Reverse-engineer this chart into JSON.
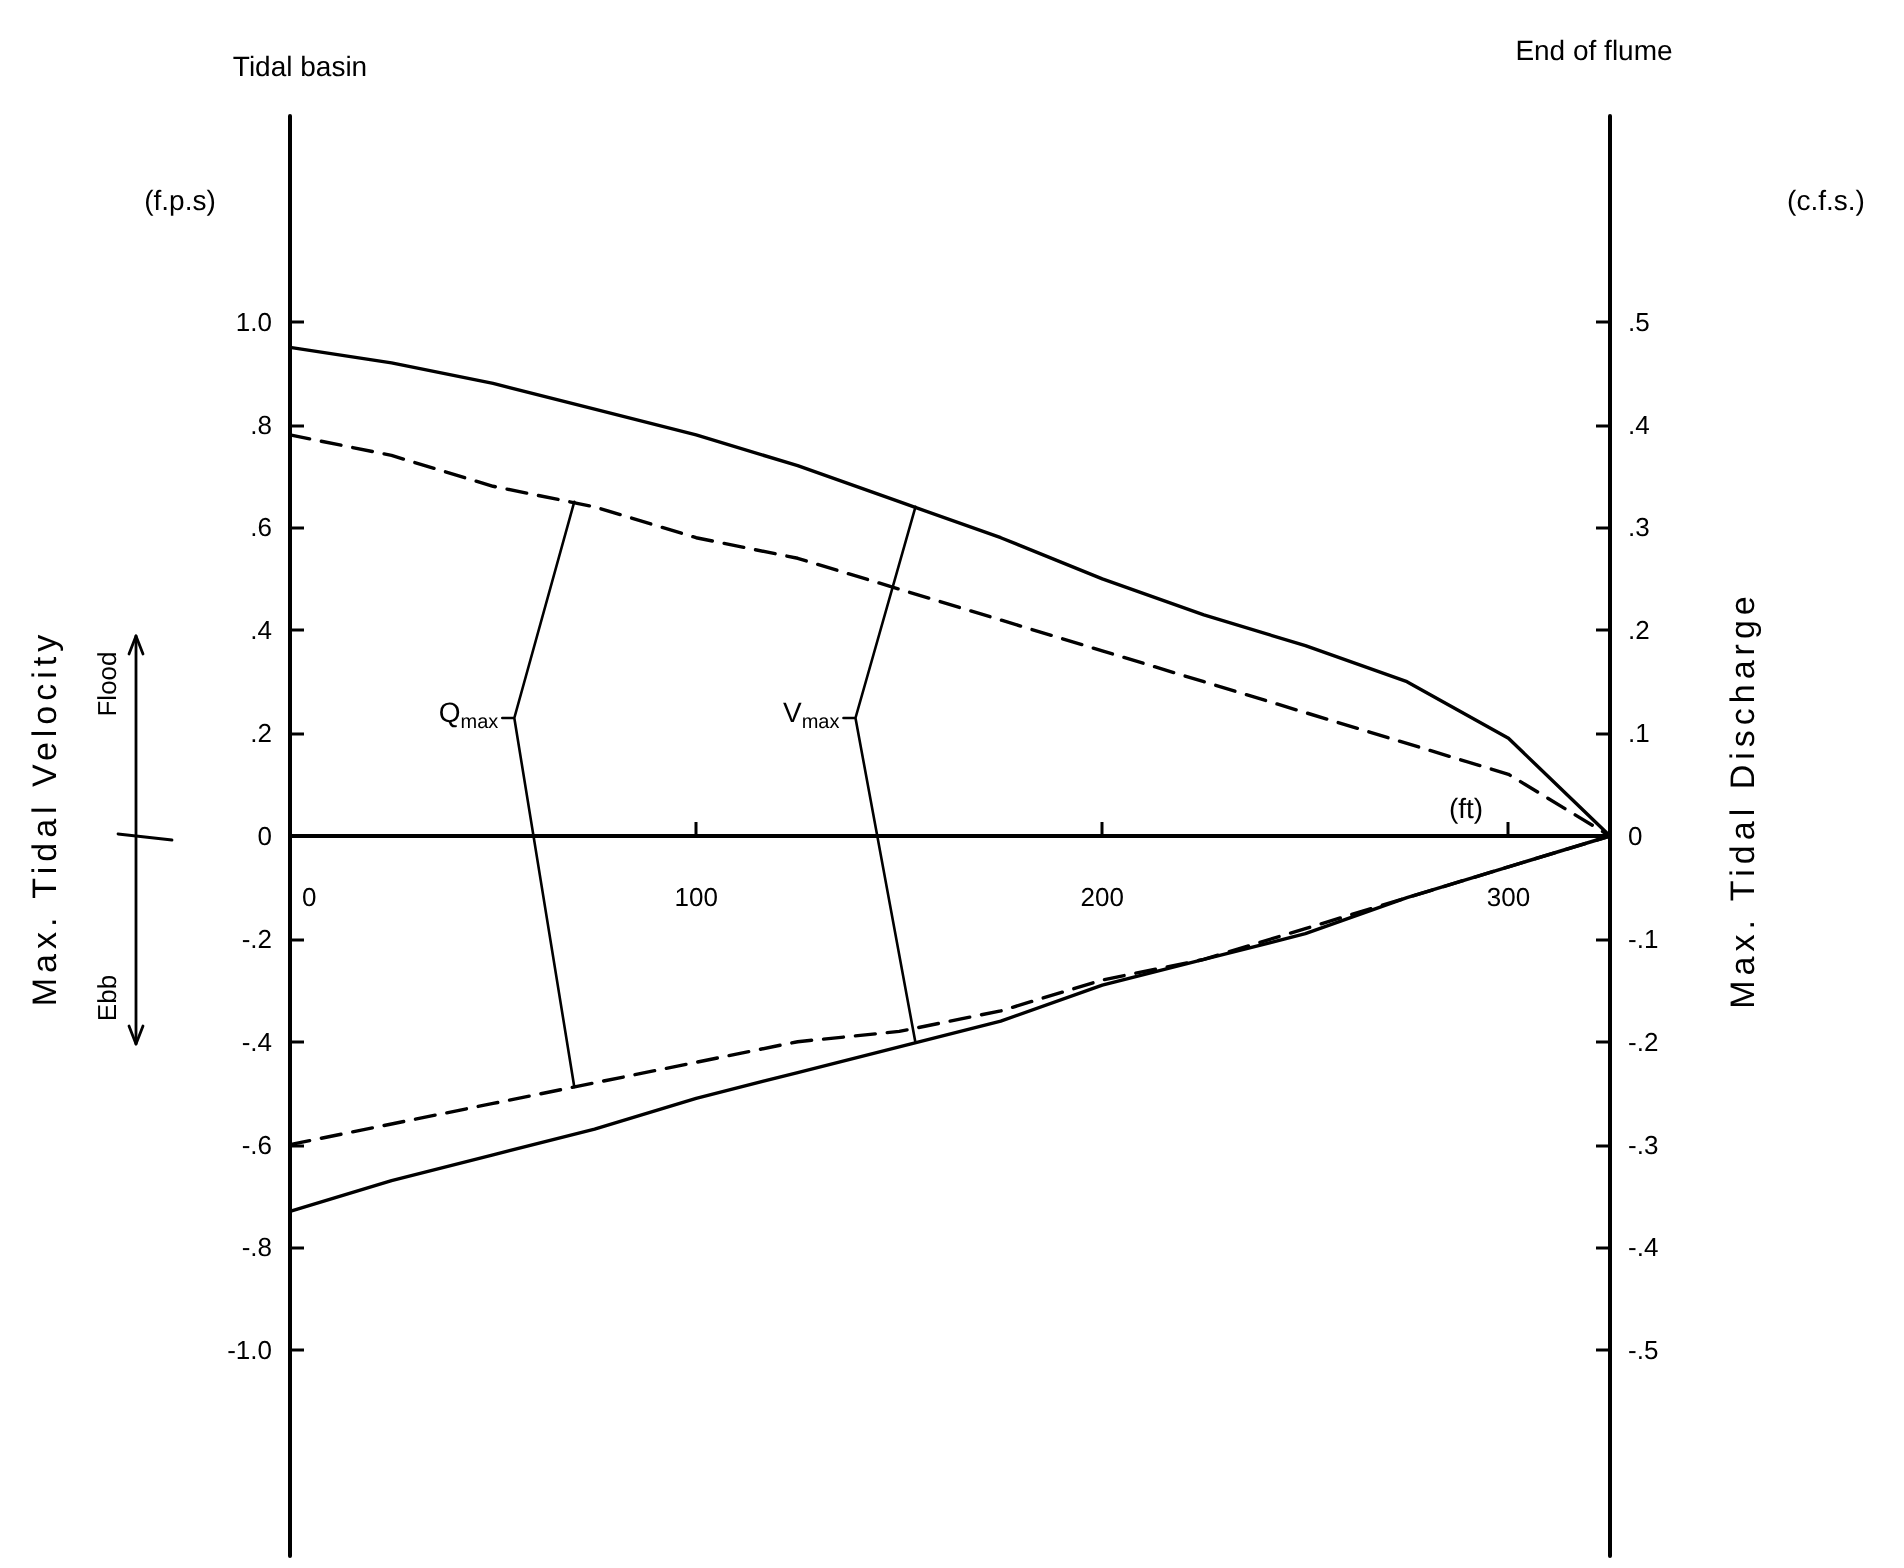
{
  "chart_data": {
    "type": "line",
    "xlabel": "(ft)",
    "ylabel": "Max. Tidal Velocity",
    "y2label": "Max. Tidal Discharge",
    "annotations": [
      "Tidal basin",
      "End of flume",
      "(f.p.s)",
      "(c.f.s.)",
      "Flood",
      "Ebb",
      {
        "text": "Q$_{max}$",
        "x": 70,
        "y": 0.65
      },
      {
        "text": "V$_{max}$",
        "x": 154,
        "y": 0.64
      }
    ],
    "x": [
      0,
      25,
      50,
      75,
      100,
      125,
      150,
      175,
      200,
      225,
      250,
      275,
      300,
      325
    ],
    "series": [
      {
        "color": "#000000",
        "line_style": "solid",
        "values": [
          0.95,
          0.92,
          0.88,
          0.83,
          0.78,
          0.72,
          0.65,
          0.58,
          0.5,
          0.43,
          0.37,
          0.3,
          0.19,
          0
        ]
      },
      {
        "color": "#000000",
        "line_style": "solid",
        "values": [
          -0.73,
          -0.67,
          -0.62,
          -0.57,
          -0.51,
          -0.46,
          -0.41,
          -0.36,
          -0.29,
          -0.24,
          -0.19,
          -0.12,
          -0.06,
          0
        ]
      },
      {
        "color": "#000000",
        "line_style": "dashed",
        "axis": "y2",
        "values": [
          0.39,
          0.37,
          0.34,
          0.32,
          0.29,
          0.27,
          0.24,
          0.21,
          0.18,
          0.15,
          0.12,
          0.09,
          0.06,
          0
        ]
      },
      {
        "color": "#000000",
        "line_style": "dashed",
        "axis": "y2",
        "values": [
          -0.3,
          -0.28,
          -0.26,
          -0.24,
          -0.22,
          -0.2,
          -0.19,
          -0.17,
          -0.14,
          -0.12,
          -0.09,
          -0.06,
          -0.03,
          0
        ]
      }
    ],
    "xlim": [
      0,
      325
    ],
    "xticks": [
      0,
      100,
      200,
      300
    ],
    "ylim": [
      -1.4,
      1.4
    ],
    "yticks": [
      {
        "value": -1,
        "label": "-1.0"
      },
      {
        "value": -0.8,
        "label": "-.8"
      },
      {
        "value": -0.6,
        "label": "-.6"
      },
      {
        "value": -0.4,
        "label": "-.4"
      },
      {
        "value": -0.2,
        "label": "-.2"
      },
      0,
      {
        "value": 0.2,
        "label": ".2"
      },
      {
        "value": 0.4,
        "label": ".4"
      },
      {
        "value": 0.6,
        "label": ".6"
      },
      {
        "value": 0.8,
        "label": ".8"
      },
      {
        "value": 1,
        "label": "1.0"
      }
    ],
    "y2lim": [
      -0.7,
      0.7
    ],
    "y2ticks": [
      {
        "value": -0.5,
        "label": "-.5"
      },
      {
        "value": -0.4,
        "label": "-.4"
      },
      {
        "value": -0.3,
        "label": "-.3"
      },
      {
        "value": -0.2,
        "label": "-.2"
      },
      {
        "value": -0.1,
        "label": "-.1"
      },
      0,
      {
        "value": 0.1,
        "label": ".1"
      },
      {
        "value": 0.2,
        "label": ".2"
      },
      {
        "value": 0.3,
        "label": ".3"
      },
      {
        "value": 0.4,
        "label": ".4"
      },
      {
        "value": 0.5,
        "label": ".5"
      }
    ],
    "grid": false,
    "marker": "none"
  }
}
